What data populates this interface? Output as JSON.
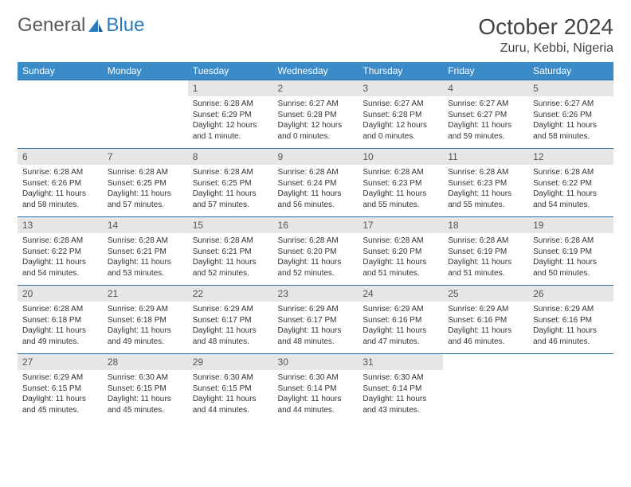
{
  "brand": {
    "part1": "General",
    "part2": "Blue"
  },
  "title": "October 2024",
  "location": "Zuru, Kebbi, Nigeria",
  "day_headers": [
    "Sunday",
    "Monday",
    "Tuesday",
    "Wednesday",
    "Thursday",
    "Friday",
    "Saturday"
  ],
  "colors": {
    "header_bg": "#3b8bc9",
    "header_text": "#ffffff",
    "row_divider": "#2a6fa8",
    "daynum_bg": "#e6e6e6",
    "logo_blue": "#2a7abf",
    "text": "#333333"
  },
  "weeks": [
    [
      {
        "n": "",
        "sunrise": "",
        "sunset": "",
        "daylight": ""
      },
      {
        "n": "",
        "sunrise": "",
        "sunset": "",
        "daylight": ""
      },
      {
        "n": "1",
        "sunrise": "Sunrise: 6:28 AM",
        "sunset": "Sunset: 6:29 PM",
        "daylight": "Daylight: 12 hours and 1 minute."
      },
      {
        "n": "2",
        "sunrise": "Sunrise: 6:27 AM",
        "sunset": "Sunset: 6:28 PM",
        "daylight": "Daylight: 12 hours and 0 minutes."
      },
      {
        "n": "3",
        "sunrise": "Sunrise: 6:27 AM",
        "sunset": "Sunset: 6:28 PM",
        "daylight": "Daylight: 12 hours and 0 minutes."
      },
      {
        "n": "4",
        "sunrise": "Sunrise: 6:27 AM",
        "sunset": "Sunset: 6:27 PM",
        "daylight": "Daylight: 11 hours and 59 minutes."
      },
      {
        "n": "5",
        "sunrise": "Sunrise: 6:27 AM",
        "sunset": "Sunset: 6:26 PM",
        "daylight": "Daylight: 11 hours and 58 minutes."
      }
    ],
    [
      {
        "n": "6",
        "sunrise": "Sunrise: 6:28 AM",
        "sunset": "Sunset: 6:26 PM",
        "daylight": "Daylight: 11 hours and 58 minutes."
      },
      {
        "n": "7",
        "sunrise": "Sunrise: 6:28 AM",
        "sunset": "Sunset: 6:25 PM",
        "daylight": "Daylight: 11 hours and 57 minutes."
      },
      {
        "n": "8",
        "sunrise": "Sunrise: 6:28 AM",
        "sunset": "Sunset: 6:25 PM",
        "daylight": "Daylight: 11 hours and 57 minutes."
      },
      {
        "n": "9",
        "sunrise": "Sunrise: 6:28 AM",
        "sunset": "Sunset: 6:24 PM",
        "daylight": "Daylight: 11 hours and 56 minutes."
      },
      {
        "n": "10",
        "sunrise": "Sunrise: 6:28 AM",
        "sunset": "Sunset: 6:23 PM",
        "daylight": "Daylight: 11 hours and 55 minutes."
      },
      {
        "n": "11",
        "sunrise": "Sunrise: 6:28 AM",
        "sunset": "Sunset: 6:23 PM",
        "daylight": "Daylight: 11 hours and 55 minutes."
      },
      {
        "n": "12",
        "sunrise": "Sunrise: 6:28 AM",
        "sunset": "Sunset: 6:22 PM",
        "daylight": "Daylight: 11 hours and 54 minutes."
      }
    ],
    [
      {
        "n": "13",
        "sunrise": "Sunrise: 6:28 AM",
        "sunset": "Sunset: 6:22 PM",
        "daylight": "Daylight: 11 hours and 54 minutes."
      },
      {
        "n": "14",
        "sunrise": "Sunrise: 6:28 AM",
        "sunset": "Sunset: 6:21 PM",
        "daylight": "Daylight: 11 hours and 53 minutes."
      },
      {
        "n": "15",
        "sunrise": "Sunrise: 6:28 AM",
        "sunset": "Sunset: 6:21 PM",
        "daylight": "Daylight: 11 hours and 52 minutes."
      },
      {
        "n": "16",
        "sunrise": "Sunrise: 6:28 AM",
        "sunset": "Sunset: 6:20 PM",
        "daylight": "Daylight: 11 hours and 52 minutes."
      },
      {
        "n": "17",
        "sunrise": "Sunrise: 6:28 AM",
        "sunset": "Sunset: 6:20 PM",
        "daylight": "Daylight: 11 hours and 51 minutes."
      },
      {
        "n": "18",
        "sunrise": "Sunrise: 6:28 AM",
        "sunset": "Sunset: 6:19 PM",
        "daylight": "Daylight: 11 hours and 51 minutes."
      },
      {
        "n": "19",
        "sunrise": "Sunrise: 6:28 AM",
        "sunset": "Sunset: 6:19 PM",
        "daylight": "Daylight: 11 hours and 50 minutes."
      }
    ],
    [
      {
        "n": "20",
        "sunrise": "Sunrise: 6:28 AM",
        "sunset": "Sunset: 6:18 PM",
        "daylight": "Daylight: 11 hours and 49 minutes."
      },
      {
        "n": "21",
        "sunrise": "Sunrise: 6:29 AM",
        "sunset": "Sunset: 6:18 PM",
        "daylight": "Daylight: 11 hours and 49 minutes."
      },
      {
        "n": "22",
        "sunrise": "Sunrise: 6:29 AM",
        "sunset": "Sunset: 6:17 PM",
        "daylight": "Daylight: 11 hours and 48 minutes."
      },
      {
        "n": "23",
        "sunrise": "Sunrise: 6:29 AM",
        "sunset": "Sunset: 6:17 PM",
        "daylight": "Daylight: 11 hours and 48 minutes."
      },
      {
        "n": "24",
        "sunrise": "Sunrise: 6:29 AM",
        "sunset": "Sunset: 6:16 PM",
        "daylight": "Daylight: 11 hours and 47 minutes."
      },
      {
        "n": "25",
        "sunrise": "Sunrise: 6:29 AM",
        "sunset": "Sunset: 6:16 PM",
        "daylight": "Daylight: 11 hours and 46 minutes."
      },
      {
        "n": "26",
        "sunrise": "Sunrise: 6:29 AM",
        "sunset": "Sunset: 6:16 PM",
        "daylight": "Daylight: 11 hours and 46 minutes."
      }
    ],
    [
      {
        "n": "27",
        "sunrise": "Sunrise: 6:29 AM",
        "sunset": "Sunset: 6:15 PM",
        "daylight": "Daylight: 11 hours and 45 minutes."
      },
      {
        "n": "28",
        "sunrise": "Sunrise: 6:30 AM",
        "sunset": "Sunset: 6:15 PM",
        "daylight": "Daylight: 11 hours and 45 minutes."
      },
      {
        "n": "29",
        "sunrise": "Sunrise: 6:30 AM",
        "sunset": "Sunset: 6:15 PM",
        "daylight": "Daylight: 11 hours and 44 minutes."
      },
      {
        "n": "30",
        "sunrise": "Sunrise: 6:30 AM",
        "sunset": "Sunset: 6:14 PM",
        "daylight": "Daylight: 11 hours and 44 minutes."
      },
      {
        "n": "31",
        "sunrise": "Sunrise: 6:30 AM",
        "sunset": "Sunset: 6:14 PM",
        "daylight": "Daylight: 11 hours and 43 minutes."
      },
      {
        "n": "",
        "sunrise": "",
        "sunset": "",
        "daylight": ""
      },
      {
        "n": "",
        "sunrise": "",
        "sunset": "",
        "daylight": ""
      }
    ]
  ]
}
